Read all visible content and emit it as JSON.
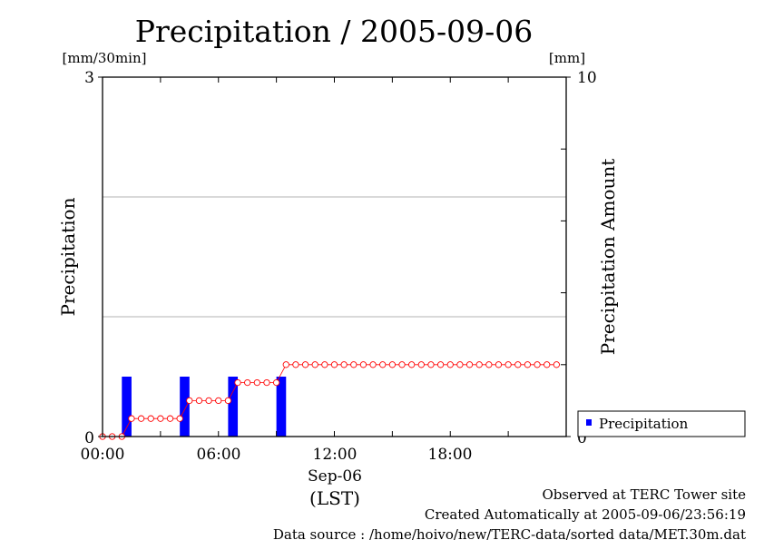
{
  "chart_data": {
    "type": "bar",
    "title": "Precipitation / 2005-09-06",
    "xlabel_date": "Sep-06",
    "xlabel_tz": "(LST)",
    "x_ticks": [
      "00:00",
      "06:00",
      "12:00",
      "18:00"
    ],
    "x_tick_hours": [
      0,
      6,
      12,
      18
    ],
    "xlim_hours": [
      0,
      24
    ],
    "left_axis": {
      "label": "Precipitation",
      "unit": "[mm/30min]",
      "ylim": [
        0,
        3
      ],
      "tick_labels": [
        "0",
        "3"
      ],
      "grid_values": [
        1,
        2
      ]
    },
    "right_axis": {
      "label": "Precipitation Amount",
      "unit": "[mm]",
      "ylim": [
        0,
        10
      ],
      "tick_labels": [
        "0",
        "10"
      ],
      "minor_tick_values": [
        2,
        4,
        6,
        8
      ]
    },
    "series": [
      {
        "name": "Precipitation",
        "kind": "bar",
        "axis": "left",
        "color": "#0000ff",
        "x_hours": [
          1.0,
          4.0,
          6.5,
          9.0
        ],
        "values": [
          0.5,
          0.5,
          0.5,
          0.5
        ]
      },
      {
        "kind": "line-marker",
        "axis": "right",
        "color": "#ff0000",
        "x_hours": [
          0,
          0.5,
          1,
          1.5,
          2,
          2.5,
          3,
          3.5,
          4,
          4.5,
          5,
          5.5,
          6,
          6.5,
          7,
          7.5,
          8,
          8.5,
          9,
          9.5,
          10,
          10.5,
          11,
          11.5,
          12,
          12.5,
          13,
          13.5,
          14,
          14.5,
          15,
          15.5,
          16,
          16.5,
          17,
          17.5,
          18,
          18.5,
          19,
          19.5,
          20,
          20.5,
          21,
          21.5,
          22,
          22.5,
          23,
          23.5
        ],
        "values": [
          0,
          0,
          0,
          0.5,
          0.5,
          0.5,
          0.5,
          0.5,
          0.5,
          1.0,
          1.0,
          1.0,
          1.0,
          1.0,
          1.5,
          1.5,
          1.5,
          1.5,
          1.5,
          2.0,
          2.0,
          2.0,
          2.0,
          2.0,
          2.0,
          2.0,
          2.0,
          2.0,
          2.0,
          2.0,
          2.0,
          2.0,
          2.0,
          2.0,
          2.0,
          2.0,
          2.0,
          2.0,
          2.0,
          2.0,
          2.0,
          2.0,
          2.0,
          2.0,
          2.0,
          2.0,
          2.0,
          2.0
        ]
      }
    ],
    "legend": {
      "placement": "lower-right-outside",
      "entries": [
        "Precipitation"
      ]
    },
    "grid": true
  },
  "footer": {
    "line1": "Observed at TERC Tower site",
    "line2": "Created Automatically at 2005-09-06/23:56:19",
    "line3": "Data source : /home/hoivo/new/TERC-data/sorted  data/MET.30m.dat"
  }
}
